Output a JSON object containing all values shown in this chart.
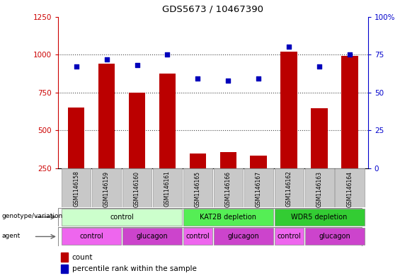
{
  "title": "GDS5673 / 10467390",
  "samples": [
    "GSM1146158",
    "GSM1146159",
    "GSM1146160",
    "GSM1146161",
    "GSM1146165",
    "GSM1146166",
    "GSM1146167",
    "GSM1146162",
    "GSM1146163",
    "GSM1146164"
  ],
  "counts": [
    650,
    940,
    750,
    875,
    345,
    355,
    335,
    1020,
    645,
    990
  ],
  "percentiles": [
    67,
    72,
    68,
    75,
    59,
    58,
    59,
    80,
    67,
    75
  ],
  "ylim_left": [
    250,
    1250
  ],
  "ylim_right": [
    0,
    100
  ],
  "yticks_left": [
    250,
    500,
    750,
    1000,
    1250
  ],
  "yticks_right": [
    0,
    25,
    50,
    75,
    100
  ],
  "bar_color": "#bb0000",
  "dot_color": "#0000bb",
  "grid_color": "#444444",
  "genotype_groups": [
    {
      "label": "control",
      "start": 0,
      "end": 3,
      "color": "#ccffcc"
    },
    {
      "label": "KAT2B depletion",
      "start": 4,
      "end": 6,
      "color": "#55ee55"
    },
    {
      "label": "WDR5 depletion",
      "start": 7,
      "end": 9,
      "color": "#33cc33"
    }
  ],
  "agent_groups": [
    {
      "label": "control",
      "start": 0,
      "end": 1,
      "color": "#ee66ee"
    },
    {
      "label": "glucagon",
      "start": 2,
      "end": 3,
      "color": "#cc44cc"
    },
    {
      "label": "control",
      "start": 4,
      "end": 4,
      "color": "#ee66ee"
    },
    {
      "label": "glucagon",
      "start": 5,
      "end": 6,
      "color": "#cc44cc"
    },
    {
      "label": "control",
      "start": 7,
      "end": 7,
      "color": "#ee66ee"
    },
    {
      "label": "glucagon",
      "start": 8,
      "end": 9,
      "color": "#cc44cc"
    }
  ],
  "tick_label_color_left": "#cc0000",
  "tick_label_color_right": "#0000cc"
}
